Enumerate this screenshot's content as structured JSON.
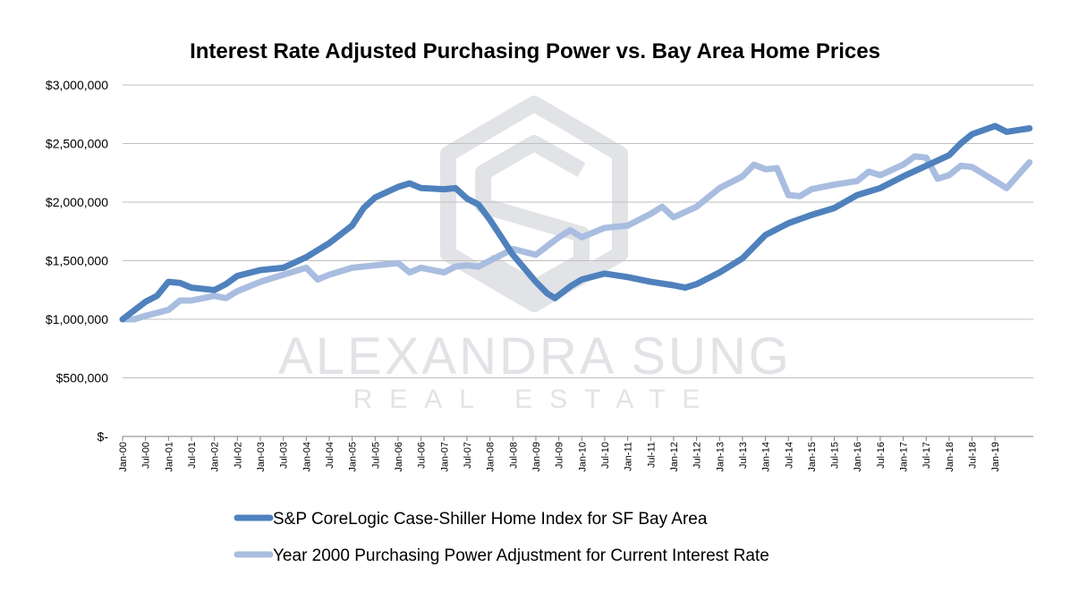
{
  "chart_data": {
    "type": "line",
    "title": "Interest Rate Adjusted Purchasing Power vs. Bay Area Home Prices",
    "xlabel": "",
    "ylabel": "",
    "ylim": [
      0,
      3000000
    ],
    "y_ticks": [
      0,
      500000,
      1000000,
      1500000,
      2000000,
      2500000,
      3000000
    ],
    "y_tick_labels": [
      "$-",
      "$500,000",
      "$1,000,000",
      "$1,500,000",
      "$2,000,000",
      "$2,500,000",
      "$3,000,000"
    ],
    "x_tick_labels": [
      "Jan-00",
      "Jul-00",
      "Jan-01",
      "Jul-01",
      "Jan-02",
      "Jul-02",
      "Jan-03",
      "Jul-03",
      "Jan-04",
      "Jul-04",
      "Jan-05",
      "Jul-05",
      "Jan-06",
      "Jul-06",
      "Jan-07",
      "Jul-07",
      "Jan-08",
      "Jul-08",
      "Jan-09",
      "Jul-09",
      "Jan-10",
      "Jul-10",
      "Jan-11",
      "Jul-11",
      "Jan-12",
      "Jul-12",
      "Jan-13",
      "Jul-13",
      "Jan-14",
      "Jul-14",
      "Jan-15",
      "Jul-15",
      "Jan-16",
      "Jul-16",
      "Jan-17",
      "Jul-17",
      "Jan-18",
      "Jul-18",
      "Jan-19"
    ],
    "grid": true,
    "legend_position": "bottom",
    "series": [
      {
        "name": "S&P CoreLogic Case-Shiller Home Index for SF Bay Area",
        "color": "#4f81bd",
        "points": [
          [
            "2000-01",
            1000000
          ],
          [
            "2000-07",
            1150000
          ],
          [
            "2000-10",
            1200000
          ],
          [
            "2001-01",
            1320000
          ],
          [
            "2001-04",
            1310000
          ],
          [
            "2001-07",
            1270000
          ],
          [
            "2002-01",
            1250000
          ],
          [
            "2002-04",
            1300000
          ],
          [
            "2002-07",
            1370000
          ],
          [
            "2003-01",
            1420000
          ],
          [
            "2003-07",
            1440000
          ],
          [
            "2004-01",
            1530000
          ],
          [
            "2004-07",
            1650000
          ],
          [
            "2005-01",
            1800000
          ],
          [
            "2005-04",
            1950000
          ],
          [
            "2005-07",
            2040000
          ],
          [
            "2006-01",
            2130000
          ],
          [
            "2006-04",
            2160000
          ],
          [
            "2006-07",
            2120000
          ],
          [
            "2007-01",
            2110000
          ],
          [
            "2007-04",
            2120000
          ],
          [
            "2007-07",
            2030000
          ],
          [
            "2007-10",
            1980000
          ],
          [
            "2008-01",
            1850000
          ],
          [
            "2008-04",
            1700000
          ],
          [
            "2008-07",
            1550000
          ],
          [
            "2009-01",
            1320000
          ],
          [
            "2009-04",
            1220000
          ],
          [
            "2009-06",
            1180000
          ],
          [
            "2009-10",
            1280000
          ],
          [
            "2010-01",
            1340000
          ],
          [
            "2010-07",
            1390000
          ],
          [
            "2011-01",
            1360000
          ],
          [
            "2011-07",
            1320000
          ],
          [
            "2012-01",
            1290000
          ],
          [
            "2012-04",
            1270000
          ],
          [
            "2012-07",
            1300000
          ],
          [
            "2013-01",
            1400000
          ],
          [
            "2013-07",
            1520000
          ],
          [
            "2014-01",
            1720000
          ],
          [
            "2014-07",
            1820000
          ],
          [
            "2015-01",
            1890000
          ],
          [
            "2015-07",
            1950000
          ],
          [
            "2016-01",
            2060000
          ],
          [
            "2016-07",
            2120000
          ],
          [
            "2017-01",
            2220000
          ],
          [
            "2017-07",
            2310000
          ],
          [
            "2018-01",
            2400000
          ],
          [
            "2018-04",
            2500000
          ],
          [
            "2018-07",
            2580000
          ],
          [
            "2019-01",
            2650000
          ],
          [
            "2019-04",
            2600000
          ],
          [
            "2019-10",
            2630000
          ]
        ]
      },
      {
        "name": "Year 2000 Purchasing Power Adjustment for Current Interest Rate",
        "color": "#a9bde0",
        "points": [
          [
            "2000-01",
            1000000
          ],
          [
            "2000-04",
            1000000
          ],
          [
            "2000-07",
            1030000
          ],
          [
            "2001-01",
            1080000
          ],
          [
            "2001-04",
            1160000
          ],
          [
            "2001-07",
            1160000
          ],
          [
            "2002-01",
            1200000
          ],
          [
            "2002-04",
            1180000
          ],
          [
            "2002-07",
            1240000
          ],
          [
            "2003-01",
            1320000
          ],
          [
            "2003-07",
            1380000
          ],
          [
            "2004-01",
            1440000
          ],
          [
            "2004-04",
            1340000
          ],
          [
            "2004-07",
            1380000
          ],
          [
            "2005-01",
            1440000
          ],
          [
            "2005-07",
            1460000
          ],
          [
            "2006-01",
            1480000
          ],
          [
            "2006-04",
            1400000
          ],
          [
            "2006-07",
            1440000
          ],
          [
            "2007-01",
            1400000
          ],
          [
            "2007-04",
            1450000
          ],
          [
            "2007-07",
            1460000
          ],
          [
            "2007-10",
            1450000
          ],
          [
            "2008-01",
            1500000
          ],
          [
            "2008-07",
            1600000
          ],
          [
            "2009-01",
            1550000
          ],
          [
            "2009-07",
            1700000
          ],
          [
            "2009-10",
            1760000
          ],
          [
            "2010-01",
            1700000
          ],
          [
            "2010-07",
            1780000
          ],
          [
            "2011-01",
            1800000
          ],
          [
            "2011-07",
            1900000
          ],
          [
            "2011-10",
            1960000
          ],
          [
            "2012-01",
            1870000
          ],
          [
            "2012-07",
            1960000
          ],
          [
            "2013-01",
            2120000
          ],
          [
            "2013-07",
            2220000
          ],
          [
            "2013-10",
            2320000
          ],
          [
            "2014-01",
            2280000
          ],
          [
            "2014-04",
            2290000
          ],
          [
            "2014-07",
            2060000
          ],
          [
            "2014-10",
            2050000
          ],
          [
            "2015-01",
            2110000
          ],
          [
            "2015-07",
            2150000
          ],
          [
            "2016-01",
            2180000
          ],
          [
            "2016-04",
            2260000
          ],
          [
            "2016-07",
            2230000
          ],
          [
            "2017-01",
            2320000
          ],
          [
            "2017-04",
            2390000
          ],
          [
            "2017-07",
            2380000
          ],
          [
            "2017-10",
            2200000
          ],
          [
            "2018-01",
            2230000
          ],
          [
            "2018-04",
            2310000
          ],
          [
            "2018-07",
            2300000
          ],
          [
            "2019-01",
            2180000
          ],
          [
            "2019-04",
            2120000
          ],
          [
            "2019-10",
            2340000
          ]
        ]
      }
    ]
  },
  "watermark": {
    "name": "ALEXANDRA SUNG",
    "sub": "REAL ESTATE",
    "logo_icon": "hexagon-s-logo-icon"
  }
}
